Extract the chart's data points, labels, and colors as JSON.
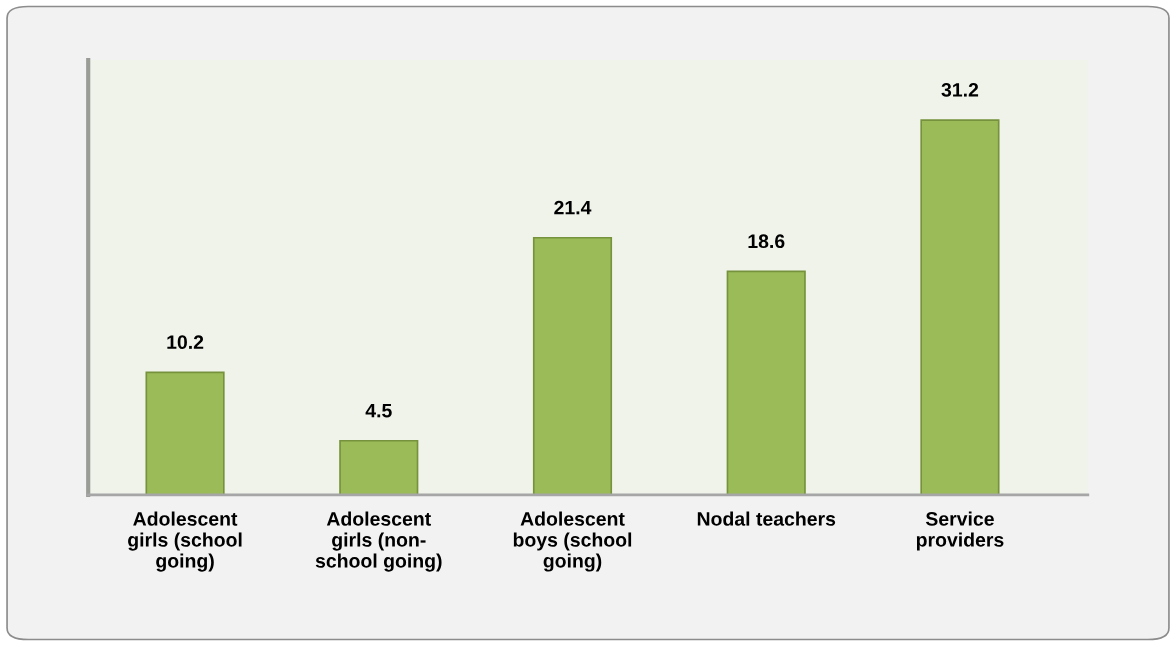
{
  "chart_data": {
    "type": "bar",
    "categories": [
      "Adolescent\ngirls (school\ngoing)",
      "Adolescent\ngirls (non-\nschool going)",
      "Adolescent\nboys (school\ngoing)",
      "Nodal teachers",
      "Service\nproviders"
    ],
    "values": [
      10.2,
      4.5,
      21.4,
      18.6,
      31.2
    ],
    "color": "#9bbb59",
    "data_labels": true,
    "tick_labels": "x"
  }
}
